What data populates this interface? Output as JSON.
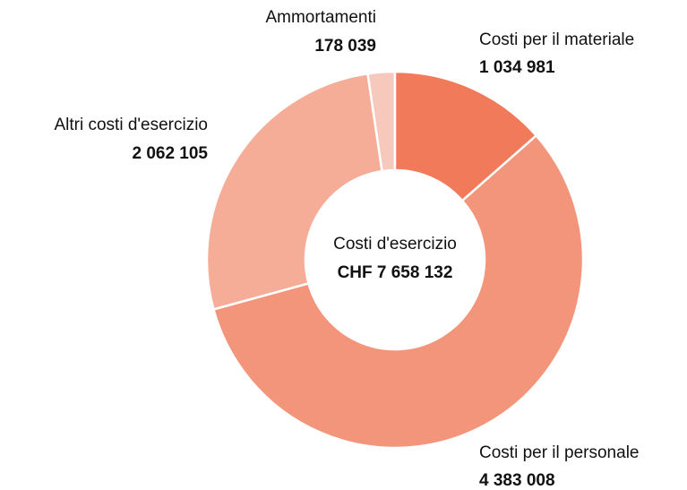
{
  "chart_data": {
    "type": "donut",
    "center_title": "Costi d'esercizio",
    "center_label": "CHF 7 658 132",
    "categories": [
      "Costi per il materiale",
      "Costi per il personale",
      "Altri costi d'esercizio",
      "Ammortamenti"
    ],
    "values": [
      1034981,
      4383008,
      2062105,
      178039
    ],
    "value_labels": [
      "1 034 981",
      "4 383 008",
      "2 062 105",
      "178 039"
    ],
    "colors": [
      "#f07a5a",
      "#f2957a",
      "#f5ad98",
      "#f7c8bc"
    ]
  }
}
